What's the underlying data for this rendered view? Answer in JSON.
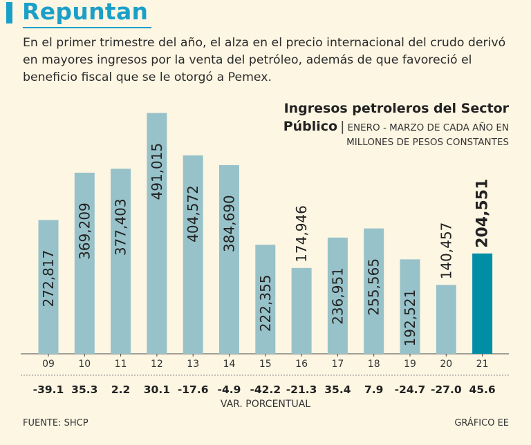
{
  "header": {
    "title": "Repuntan",
    "subtitle": "En el primer trimestre del año, el alza en el precio internacional del crudo derivó en mayores ingresos por la venta del petróleo, además de que favoreció el beneficio fiscal que se le otorgó a Pemex."
  },
  "chart_data": {
    "type": "bar",
    "title_line1": "Ingresos petroleros del Sector",
    "title_line2": "Público",
    "separator": "|",
    "unit_line1": "ENERO - MARZO DE CADA AÑO EN",
    "unit_line2": "MILLONES DE PESOS CONSTANTES",
    "categories": [
      "09",
      "10",
      "11",
      "12",
      "13",
      "14",
      "15",
      "16",
      "17",
      "18",
      "19",
      "20",
      "21"
    ],
    "values": [
      272817,
      369209,
      377403,
      491015,
      404572,
      384690,
      222355,
      174946,
      236951,
      255565,
      192521,
      140457,
      204551
    ],
    "value_labels": [
      "272,817",
      "369,209",
      "377,403",
      "491,015",
      "404,572",
      "384,690",
      "222,355",
      "174,946",
      "236,951",
      "255,565",
      "192,521",
      "140,457",
      "204,551"
    ],
    "pct_change": [
      "-39.1",
      "35.3",
      "2.2",
      "30.1",
      "-17.6",
      "-4.9",
      "-42.2",
      "-21.3",
      "35.4",
      "7.9",
      "-24.7",
      "-27.0",
      "45.6"
    ],
    "pct_label": "VAR. PORCENTUAL",
    "highlight_index": 12,
    "ylim": [
      0,
      510000
    ],
    "colors": {
      "bar": "#98c2c9",
      "highlight": "#008ea6",
      "axis": "#444444"
    }
  },
  "footer": {
    "source": "FUENTE: SHCP",
    "credit": "GRÁFICO EE"
  }
}
